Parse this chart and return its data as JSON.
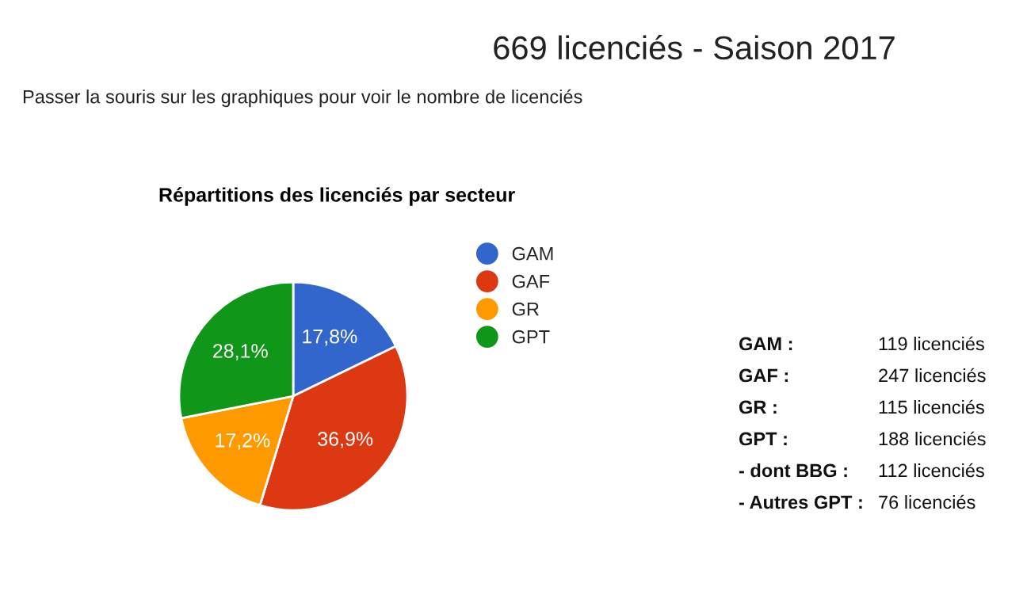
{
  "chart_data": [
    {
      "type": "pie",
      "title": "Répartitions des licenciés par secteur",
      "categories": [
        "GAM",
        "GAF",
        "GR",
        "GPT"
      ],
      "values": [
        17.8,
        36.9,
        17.2,
        28.1
      ],
      "value_labels": [
        "17,8%",
        "36,9%",
        "17,2%",
        "28,1%"
      ],
      "colors": [
        "#3366cc",
        "#dc3912",
        "#ff9900",
        "#109618"
      ],
      "legend": "right"
    },
    {
      "type": "other",
      "title": "669 licenciés - Saison 2017",
      "subtitle": "Passer la souris sur les graphiques pour voir le nombre de licenciés",
      "annotations": [
        "GAM :",
        "119 licenciés",
        "GAF :",
        "247 licenciés",
        "GR :",
        "115 licenciés",
        "GPT :",
        "188 licenciés",
        "- dont BBG :",
        "112 licenciés",
        "- Autres GPT :",
        "76 licenciés"
      ]
    }
  ]
}
